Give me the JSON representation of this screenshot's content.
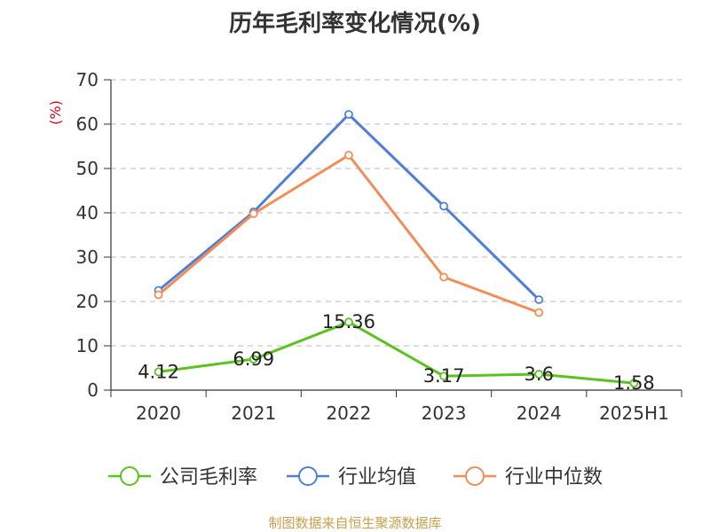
{
  "chart_data": {
    "type": "line",
    "title": "历年毛利率变化情况(%)",
    "ylabel": "(%)",
    "xlabel": "",
    "ylim": [
      0,
      70
    ],
    "yticks": [
      0,
      10,
      20,
      30,
      40,
      50,
      60,
      70
    ],
    "grid": true,
    "legend_position": "bottom",
    "categories": [
      "2020",
      "2021",
      "2022",
      "2023",
      "2024",
      "2025H1"
    ],
    "series": [
      {
        "name": "公司毛利率",
        "color": "#5cc21e",
        "values": [
          4.12,
          6.99,
          15.36,
          3.17,
          3.6,
          1.58
        ],
        "labels": [
          "4.12",
          "6.99",
          "15.36",
          "3.17",
          "3.6",
          "1.58"
        ]
      },
      {
        "name": "行业均值",
        "color": "#4f7fd8",
        "values": [
          22.5,
          40.2,
          62.2,
          41.5,
          20.4,
          null
        ]
      },
      {
        "name": "行业中位数",
        "color": "#f28d57",
        "values": [
          21.5,
          39.8,
          53.0,
          25.5,
          17.5,
          null
        ]
      }
    ]
  },
  "footer": {
    "source": "制图数据来自恒生聚源数据库"
  }
}
